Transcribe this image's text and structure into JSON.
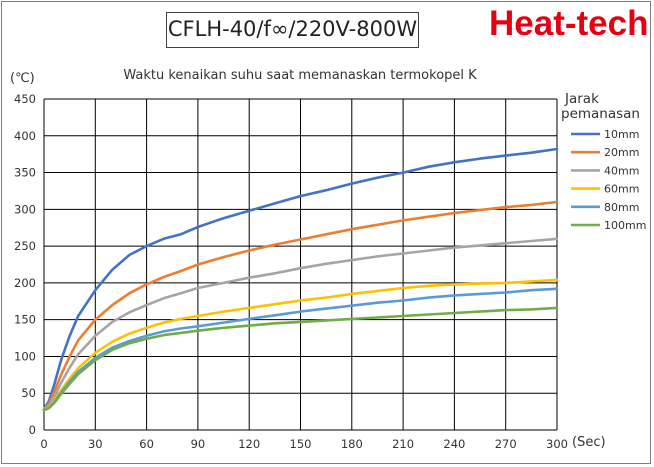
{
  "header": {
    "model": "CFLH-40/f∞/220V-800W",
    "brand": "Heat-tech"
  },
  "chart_data": {
    "type": "line",
    "title": "Waktu kenaikan suhu saat memanaskan termokopel K",
    "ylabel": "(℃)",
    "xlabel": "(Sec)",
    "xlim": [
      0,
      300
    ],
    "ylim": [
      0,
      450
    ],
    "xticks": [
      0,
      30,
      60,
      90,
      120,
      150,
      180,
      210,
      240,
      270,
      300
    ],
    "yticks": [
      0,
      50,
      100,
      150,
      200,
      250,
      300,
      350,
      400,
      450
    ],
    "grid": true,
    "legend_title": [
      "Jarak",
      "pemanasan"
    ],
    "legend_position": "right",
    "x": [
      0,
      3,
      6,
      10,
      15,
      20,
      30,
      40,
      50,
      60,
      70,
      80,
      90,
      105,
      120,
      135,
      150,
      165,
      180,
      195,
      210,
      225,
      240,
      255,
      270,
      285,
      300
    ],
    "series": [
      {
        "name": "10mm",
        "color": "#4472c4",
        "values": [
          28,
          40,
          62,
          95,
          128,
          155,
          190,
          218,
          238,
          250,
          260,
          266,
          276,
          288,
          298,
          308,
          318,
          326,
          335,
          343,
          350,
          358,
          364,
          369,
          373,
          377,
          382
        ]
      },
      {
        "name": "20mm",
        "color": "#ed7d31",
        "values": [
          28,
          36,
          52,
          75,
          100,
          122,
          150,
          170,
          186,
          198,
          208,
          216,
          225,
          235,
          244,
          252,
          259,
          266,
          273,
          279,
          285,
          290,
          295,
          299,
          303,
          306,
          310
        ]
      },
      {
        "name": "40mm",
        "color": "#a5a5a5",
        "values": [
          28,
          33,
          45,
          64,
          85,
          103,
          128,
          147,
          160,
          170,
          179,
          186,
          193,
          200,
          207,
          213,
          220,
          226,
          231,
          236,
          240,
          244,
          248,
          251,
          254,
          257,
          260
        ]
      },
      {
        "name": "60mm",
        "color": "#ffc000",
        "values": [
          27,
          31,
          40,
          54,
          70,
          84,
          105,
          120,
          131,
          139,
          146,
          151,
          155,
          161,
          166,
          171,
          176,
          180,
          185,
          189,
          193,
          196,
          198,
          199,
          200,
          202,
          204
        ]
      },
      {
        "name": "80mm",
        "color": "#5b9bd5",
        "values": [
          27,
          30,
          38,
          51,
          66,
          79,
          98,
          112,
          121,
          128,
          134,
          138,
          141,
          146,
          151,
          156,
          161,
          165,
          169,
          173,
          176,
          180,
          183,
          185,
          187,
          190,
          192
        ]
      },
      {
        "name": "100mm",
        "color": "#70ad47",
        "values": [
          27,
          30,
          37,
          49,
          63,
          76,
          95,
          109,
          118,
          124,
          129,
          132,
          135,
          139,
          142,
          145,
          147,
          149,
          151,
          153,
          155,
          157,
          159,
          161,
          163,
          164,
          166
        ]
      }
    ]
  }
}
